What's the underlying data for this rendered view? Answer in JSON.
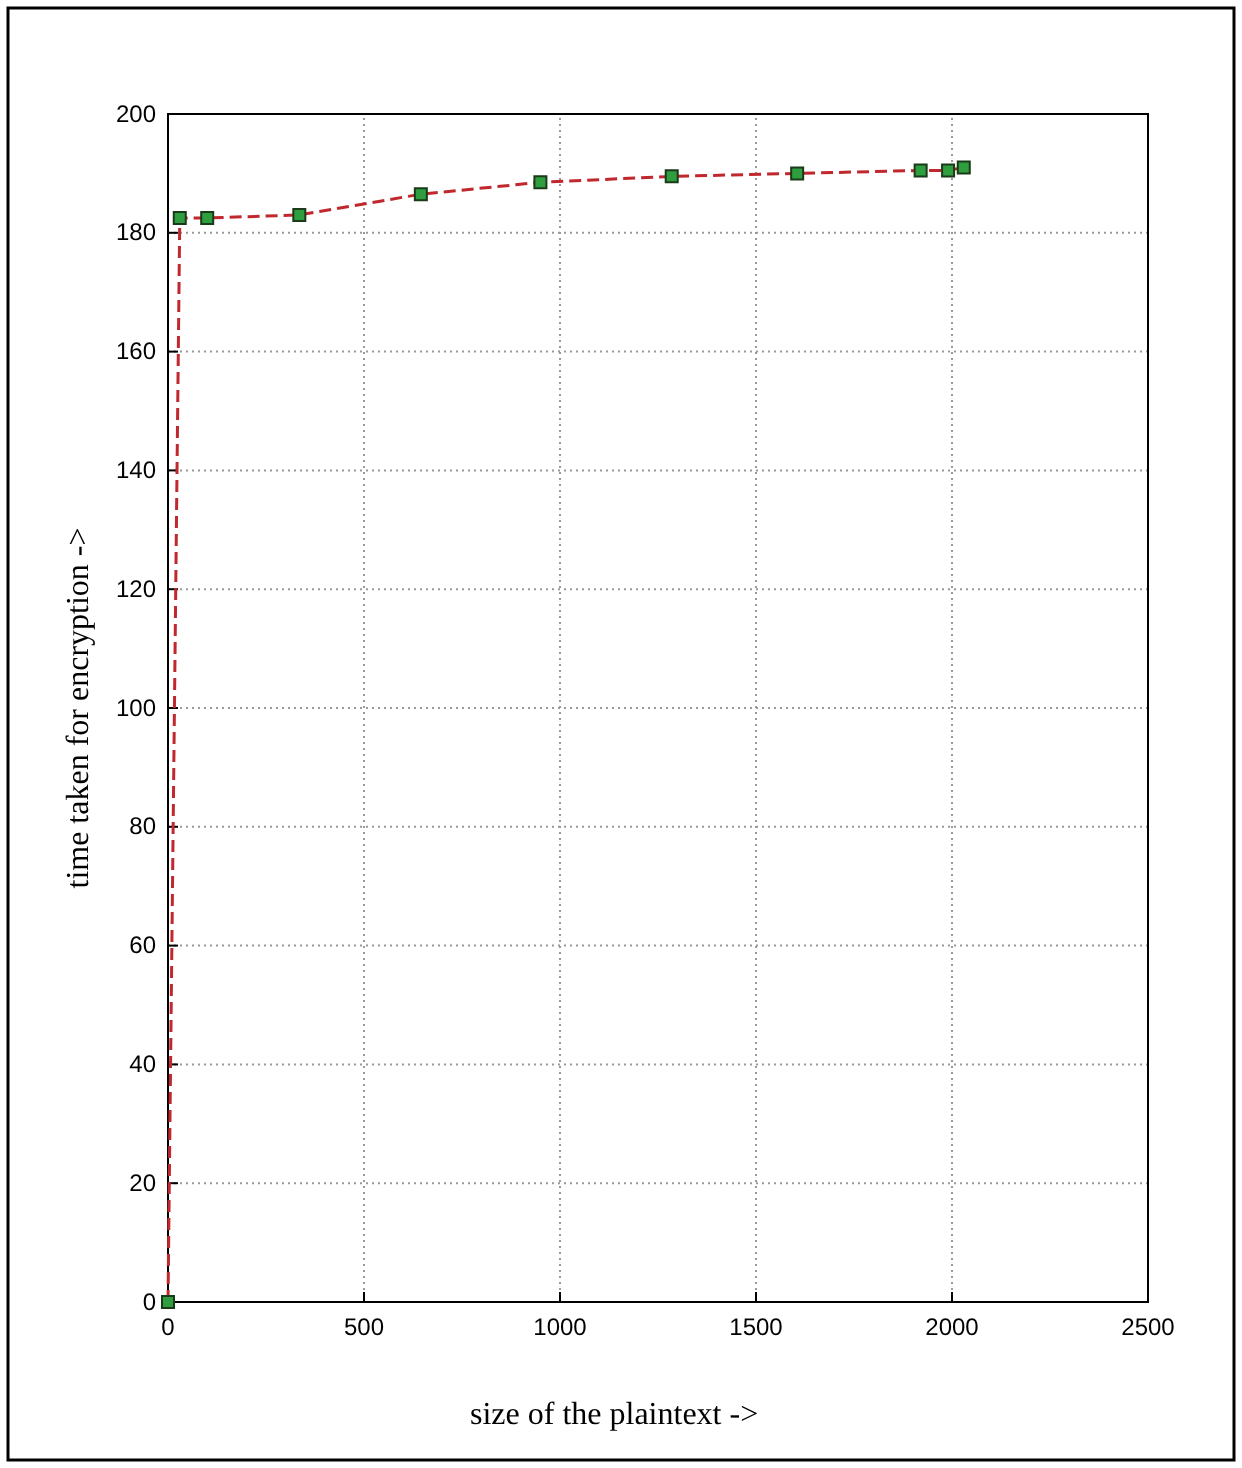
{
  "chart_data": {
    "type": "line",
    "xlabel": "size of the plaintext   ->",
    "ylabel": "time taken for encryption  ->",
    "x": [
      0,
      30,
      100,
      335,
      645,
      950,
      1285,
      1605,
      1920,
      1990,
      2030
    ],
    "series": [
      {
        "color": "#c0282d",
        "values": [
          0,
          182.5,
          182.5,
          183,
          186.5,
          188.5,
          189.5,
          190,
          190.5,
          190.5,
          191
        ]
      }
    ],
    "xlim": [
      0,
      2500
    ],
    "xticks": [
      0,
      500,
      1000,
      1500,
      2000,
      2500
    ],
    "ylim": [
      0,
      200
    ],
    "yticks": [
      0,
      20,
      40,
      60,
      80,
      100,
      120,
      140,
      160,
      180,
      200
    ],
    "grid": true,
    "marker": "square",
    "line_style": "dashed"
  }
}
